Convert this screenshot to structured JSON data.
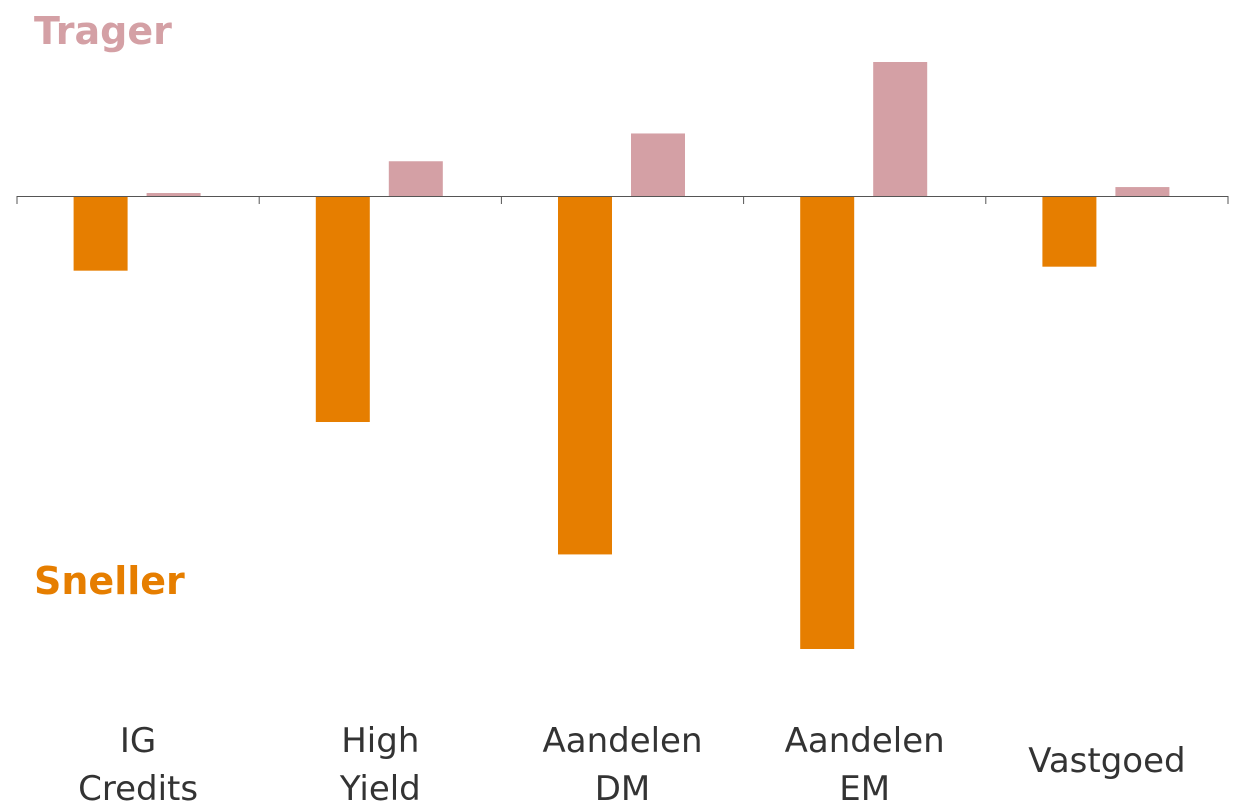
{
  "chart_data": {
    "type": "bar",
    "categories": [
      [
        "IG",
        "Credits"
      ],
      [
        "High",
        "Yield"
      ],
      [
        "Aandelen",
        "DM"
      ],
      [
        "Aandelen",
        "EM"
      ],
      [
        "Vastgoed"
      ]
    ],
    "series": [
      {
        "color": "#E67E00",
        "values": [
          -0.75,
          -2.27,
          -3.6,
          -4.55,
          -0.71
        ]
      },
      {
        "color": "#D4A0A5",
        "values": [
          0.03,
          0.35,
          0.63,
          1.35,
          0.09
        ]
      }
    ],
    "ylim": [
      -4.55,
      1.35
    ],
    "annotations": {
      "top": {
        "text": "Trager",
        "color": "#D4A0A5"
      },
      "bottom": {
        "text": "Sneller",
        "color": "#E67E00"
      }
    },
    "grid": false,
    "legend": "none"
  }
}
